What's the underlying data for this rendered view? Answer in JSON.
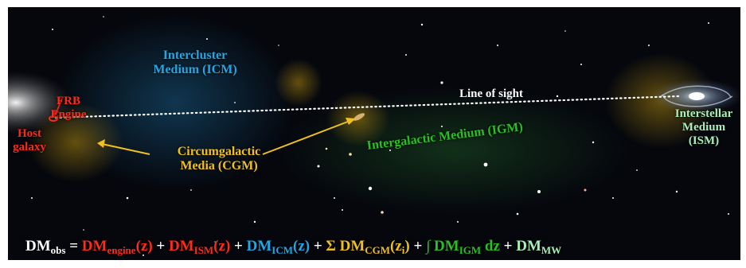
{
  "labels": {
    "frb_engine": "FRB\nEngine",
    "host_galaxy": "Host\ngalaxy",
    "icm": "Intercluster\nMedium (ICM)",
    "cgm": "Circumgalactic\nMedia (CGM)",
    "line_of_sight": "Line of sight",
    "igm": "Intergalactic Medium (IGM)",
    "ism": "Interstellar\nMedium\n(ISM)"
  },
  "equation": {
    "obs_base": "DM",
    "obs_sub": "obs",
    "equals": " = ",
    "engine_base": "DM",
    "engine_sub": "engine",
    "engine_arg": "(z)",
    "plus1": " + ",
    "ism_base": "DM",
    "ism_sub": "ISM",
    "ism_arg": "(z)",
    "plus2": " + ",
    "icm_base": "DM",
    "icm_sub": "ICM",
    "icm_arg": "(z)",
    "plus3": " + ",
    "cgm_sigma": "Σ DM",
    "cgm_sub": "CGM",
    "cgm_arg": "(z",
    "cgm_arg_sub": "i",
    "cgm_arg_close": ")",
    "plus4": " + ",
    "igm_integral": "∫ DM",
    "igm_sub": "IGM",
    "igm_dz": " dz",
    "plus5": " + ",
    "mw_base": "DM",
    "mw_sub": "MW"
  },
  "colors": {
    "red": "#ff2a1a",
    "blue": "#1ea8e8",
    "yellow": "#f0c020",
    "green": "#27c21f",
    "mint": "#a8f0b8",
    "white": "#ffffff",
    "background": "#05070d"
  }
}
